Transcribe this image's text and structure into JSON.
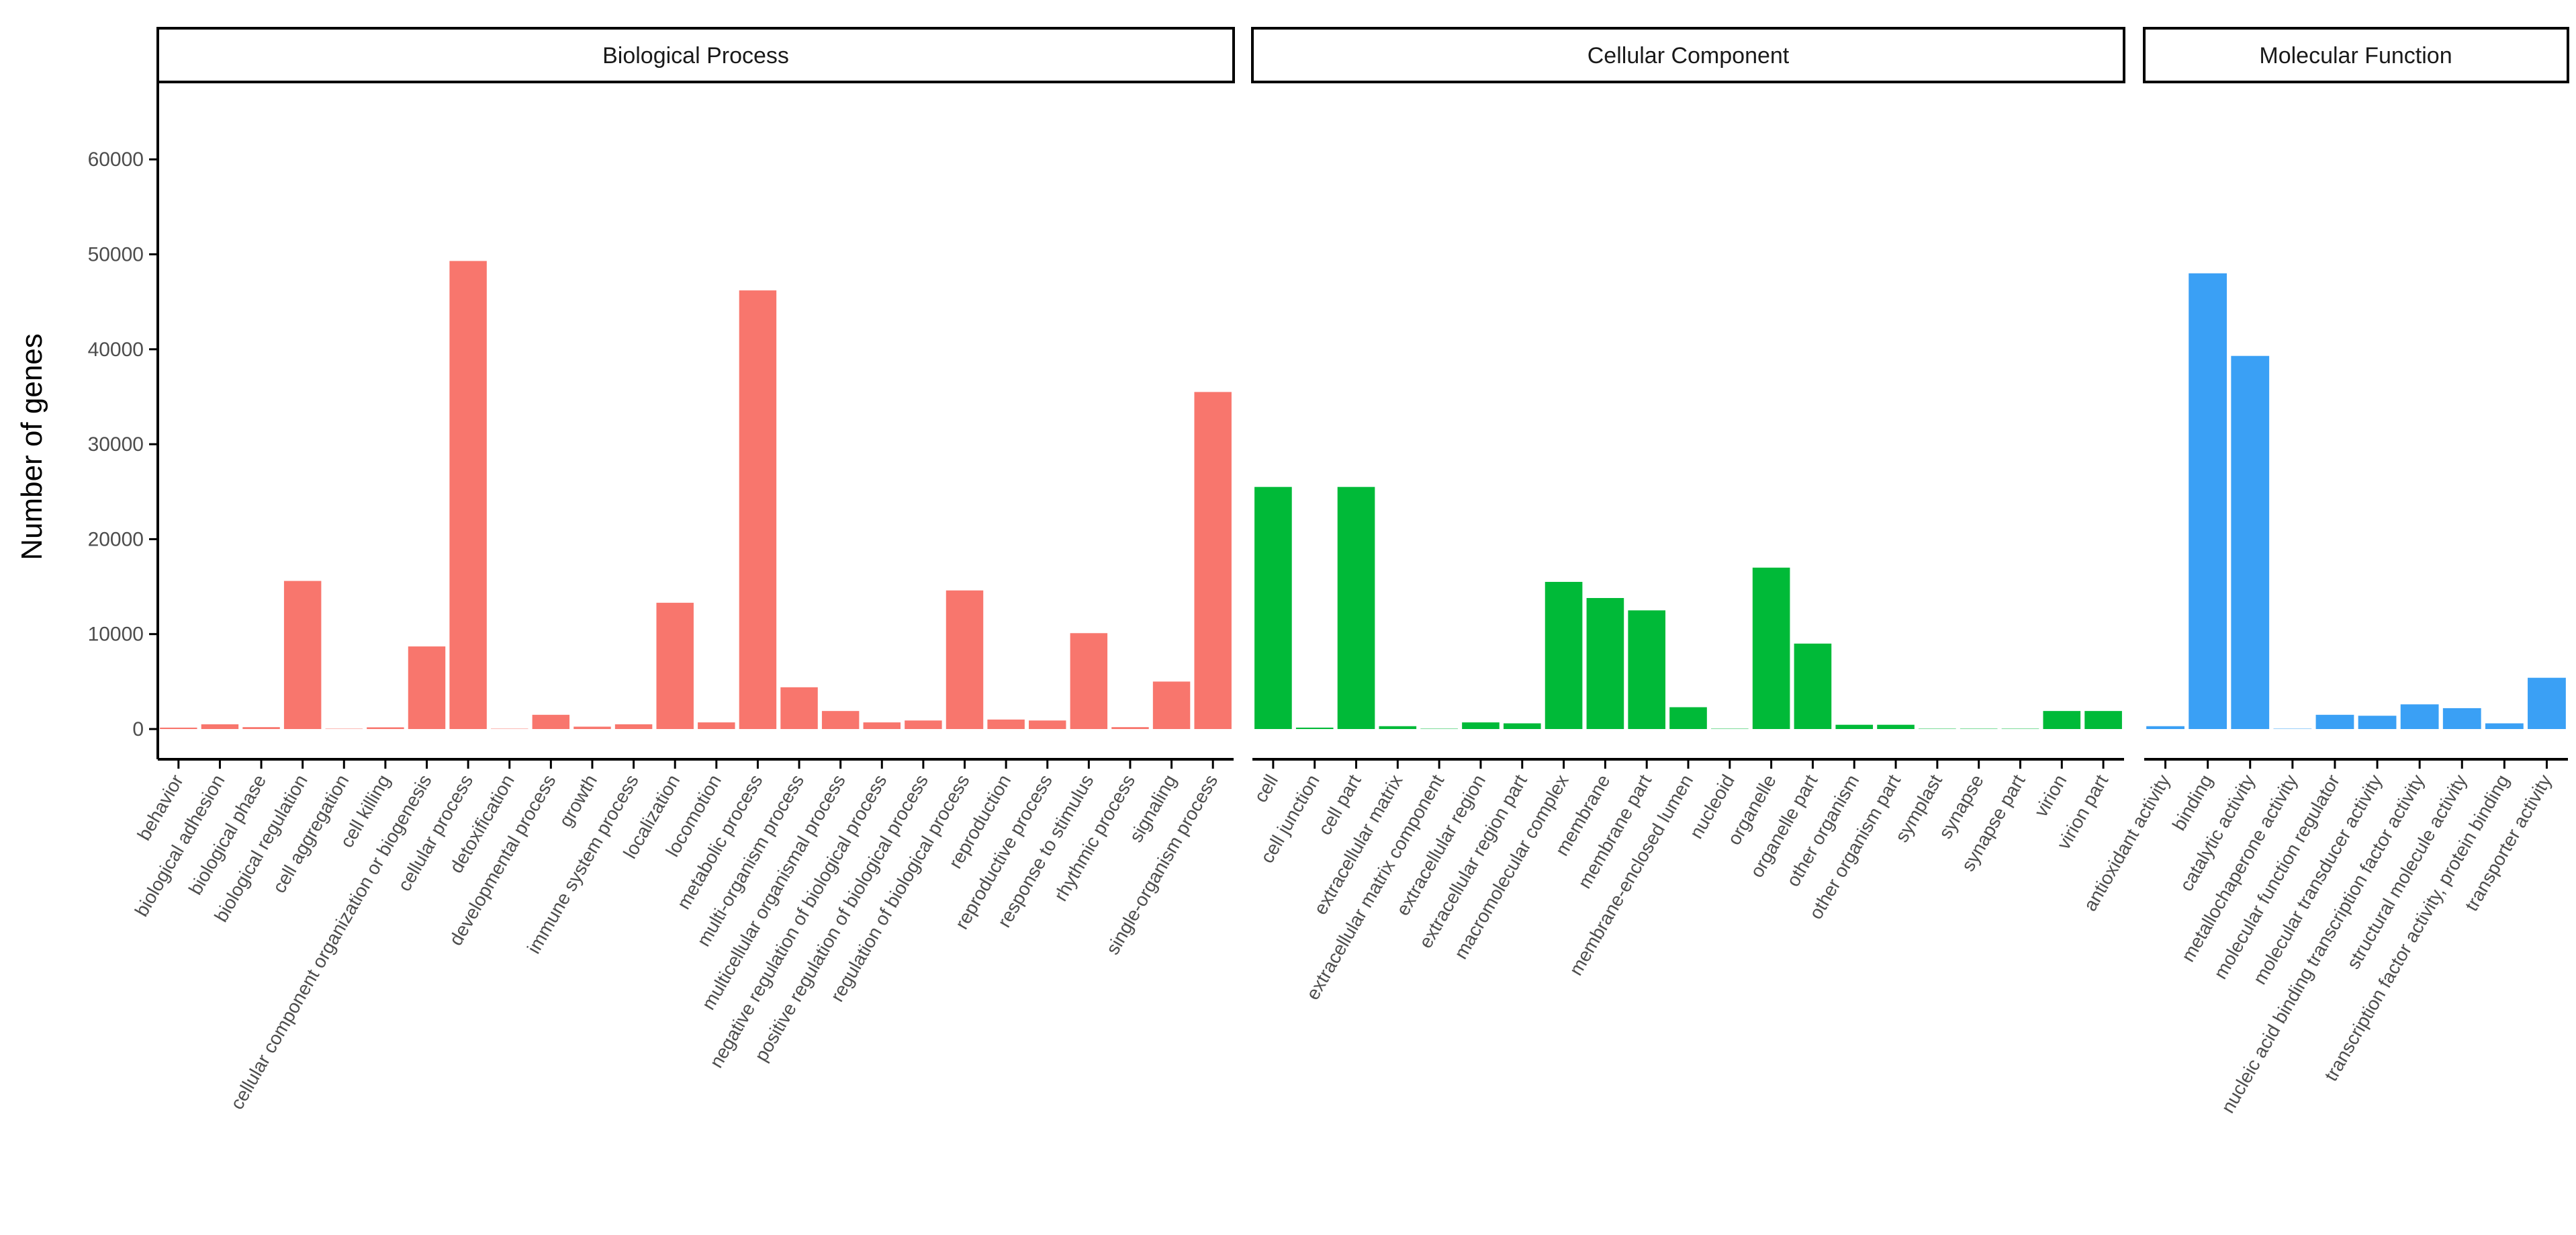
{
  "chart_data": {
    "type": "bar",
    "ylabel": "Number of genes",
    "xlabel": "",
    "ylim": [
      0,
      68000
    ],
    "yticks": [
      0,
      10000,
      20000,
      30000,
      40000,
      50000,
      60000
    ],
    "grid": false,
    "facets": [
      {
        "title": "Biological Process",
        "color": "#F8766D",
        "categories": [
          "behavior",
          "biological adhesion",
          "biological phase",
          "biological regulation",
          "cell aggregation",
          "cell killing",
          "cellular component organization or biogenesis",
          "cellular process",
          "detoxification",
          "developmental process",
          "growth",
          "immune system process",
          "localization",
          "locomotion",
          "metabolic process",
          "multi-organism process",
          "multicellular organismal process",
          "negative regulation of biological process",
          "positive regulation of biological process",
          "regulation of biological process",
          "reproduction",
          "reproductive process",
          "response to stimulus",
          "rhythmic process",
          "signaling",
          "single-organism process"
        ],
        "values": [
          150,
          500,
          200,
          15600,
          10,
          180,
          8700,
          49300,
          20,
          1500,
          250,
          500,
          13300,
          700,
          46200,
          4400,
          1900,
          700,
          900,
          14600,
          1000,
          900,
          10100,
          200,
          5000,
          35500
        ]
      },
      {
        "title": "Cellular Component",
        "color": "#00BA38",
        "categories": [
          "cell",
          "cell junction",
          "cell part",
          "extracellular matrix",
          "extracellular matrix component",
          "extracellular region",
          "extracellular region part",
          "macromolecular complex",
          "membrane",
          "membrane part",
          "membrane-enclosed lumen",
          "nucleoid",
          "organelle",
          "organelle part",
          "other organism",
          "other organism part",
          "symplast",
          "synapse",
          "synapse part",
          "virion",
          "virion part"
        ],
        "values": [
          25500,
          150,
          25500,
          300,
          10,
          700,
          600,
          15500,
          13800,
          12500,
          2300,
          10,
          17000,
          9000,
          450,
          450,
          10,
          10,
          10,
          1900,
          1900
        ]
      },
      {
        "title": "Molecular Function",
        "color": "#3AA0F5",
        "categories": [
          "antioxidant activity",
          "binding",
          "catalytic activity",
          "metallochaperone activity",
          "molecular function regulator",
          "molecular transducer activity",
          "nucleic acid binding transcription factor activity",
          "structural molecule activity",
          "transcription factor activity, protein binding",
          "transporter activity"
        ],
        "values": [
          300,
          48000,
          39300,
          10,
          1500,
          1400,
          2600,
          2200,
          600,
          5400
        ]
      }
    ]
  }
}
